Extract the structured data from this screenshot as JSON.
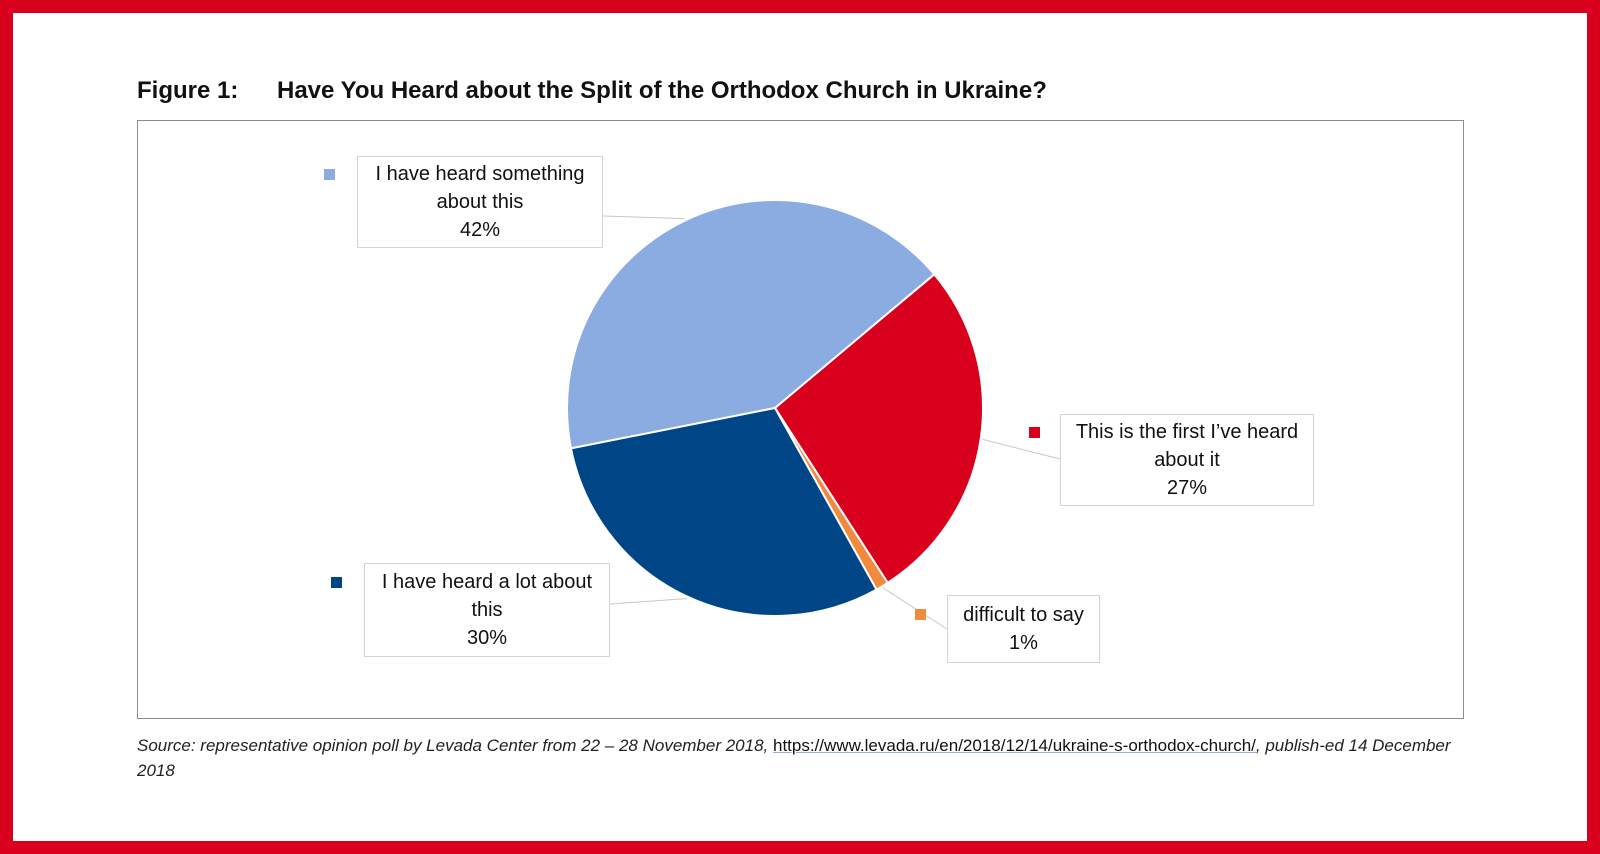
{
  "figure": {
    "number": "Figure 1:",
    "title": "Have You Heard about the Split of the Orthodox Church in Ukraine?"
  },
  "colors": {
    "frame": "#d8001d",
    "heard_something": "#8aace0",
    "first_heard": "#d8001d",
    "difficult": "#f08a3c",
    "heard_lot": "#004585"
  },
  "chart_data": {
    "type": "pie",
    "series": [
      {
        "name": "I have heard something about this",
        "value": 42,
        "label": "42%",
        "color": "#8aace0",
        "line1": "I have heard something",
        "line2": "about this"
      },
      {
        "name": "This is the first I’ve heard about it",
        "value": 27,
        "label": "27%",
        "color": "#d8001d",
        "line1": "This is the first I’ve heard",
        "line2": "about it"
      },
      {
        "name": "difficult to say",
        "value": 1,
        "label": "1%",
        "color": "#f08a3c",
        "line1": "difficult to say",
        "line2": ""
      },
      {
        "name": "I have heard a lot about this",
        "value": 30,
        "label": "30%",
        "color": "#004585",
        "line1": "I have heard a lot about",
        "line2": "this"
      }
    ]
  },
  "source": {
    "prefix": "Source: representative opinion poll by Levada Center from 22 – 28 November 2018, ",
    "link": "https://www.levada.ru/en/2018/12/14/ukraine-s-orthodox-church/",
    "suffix": ", publish-ed 14 December 2018"
  }
}
